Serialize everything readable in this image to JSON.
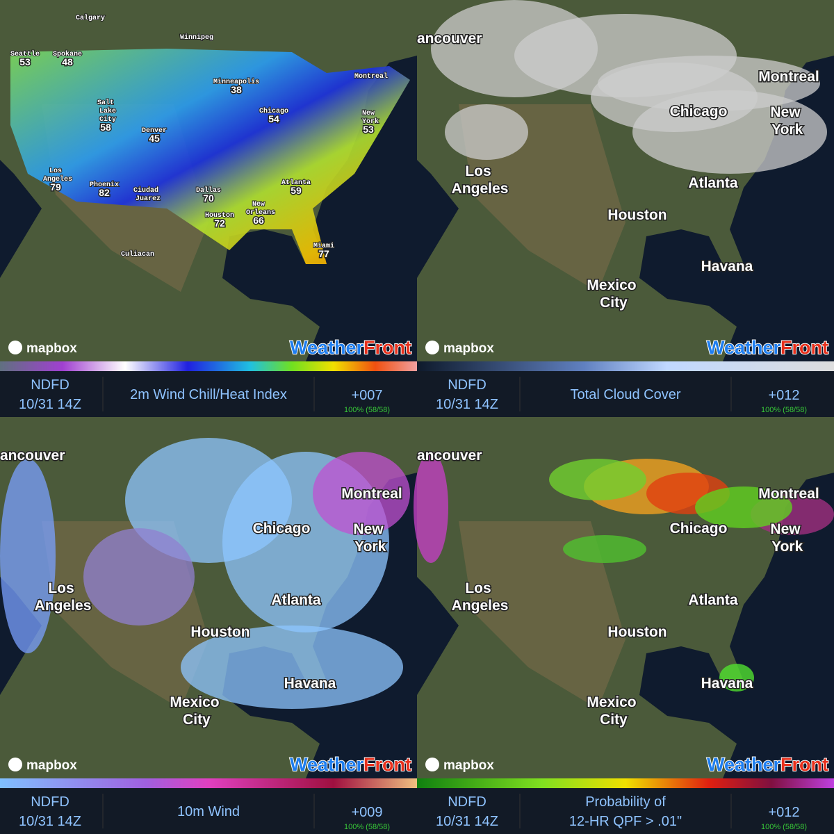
{
  "panels": [
    {
      "cities": [
        {
          "name": "Calgary"
        },
        {
          "name": "Winnipeg"
        },
        {
          "name": "Seattle",
          "value": 53
        },
        {
          "name": "Spokane",
          "value": 48
        },
        {
          "name": "Minneapolis",
          "value": 38
        },
        {
          "name": "Montreal"
        },
        {
          "name": "Salt Lake City",
          "value": 58
        },
        {
          "name": "Chicago",
          "value": 54
        },
        {
          "name": "New York",
          "value": 53
        },
        {
          "name": "Denver",
          "value": 45
        },
        {
          "name": "Los Angeles",
          "value": 79
        },
        {
          "name": "Phoenix",
          "value": 82
        },
        {
          "name": "Ciudad Juarez"
        },
        {
          "name": "Dallas",
          "value": 70
        },
        {
          "name": "Atlanta",
          "value": 59
        },
        {
          "name": "New Orleans",
          "value": 66
        },
        {
          "name": "Houston",
          "value": 72
        },
        {
          "name": "Miami",
          "value": 77
        },
        {
          "name": "Culiacan"
        }
      ],
      "logo": "mapbox",
      "brand": [
        "Weather",
        "Front"
      ],
      "footer": {
        "source": "NDFD",
        "time": "10/31 14Z",
        "product": [
          "2m Wind Chill/Heat Index"
        ],
        "offset": "+007",
        "progress": "100% (58/58)"
      }
    },
    {
      "cities": [
        {
          "name": "ancouver"
        },
        {
          "name": "Montreal"
        },
        {
          "name": "Chicago"
        },
        {
          "name": "New York"
        },
        {
          "name": "Los Angeles"
        },
        {
          "name": "Atlanta"
        },
        {
          "name": "Houston"
        },
        {
          "name": "Havana"
        },
        {
          "name": "Mexico City"
        }
      ],
      "logo": "mapbox",
      "brand": [
        "Weather",
        "Front"
      ],
      "footer": {
        "source": "NDFD",
        "time": "10/31 14Z",
        "product": [
          "Total Cloud Cover"
        ],
        "offset": "+012",
        "progress": "100% (58/58)"
      }
    },
    {
      "cities": [
        {
          "name": "ancouver"
        },
        {
          "name": "Montreal"
        },
        {
          "name": "Chicago"
        },
        {
          "name": "New York"
        },
        {
          "name": "Los Angeles"
        },
        {
          "name": "Atlanta"
        },
        {
          "name": "Houston"
        },
        {
          "name": "Havana"
        },
        {
          "name": "Mexico City"
        }
      ],
      "logo": "mapbox",
      "brand": [
        "Weather",
        "Front"
      ],
      "footer": {
        "source": "NDFD",
        "time": "10/31 14Z",
        "product": [
          "10m Wind"
        ],
        "offset": "+009",
        "progress": "100% (58/58)"
      }
    },
    {
      "cities": [
        {
          "name": "ancouver"
        },
        {
          "name": "Montreal"
        },
        {
          "name": "Chicago"
        },
        {
          "name": "New York"
        },
        {
          "name": "Los Angeles"
        },
        {
          "name": "Atlanta"
        },
        {
          "name": "Houston"
        },
        {
          "name": "Havana"
        },
        {
          "name": "Mexico City"
        }
      ],
      "logo": "mapbox",
      "brand": [
        "Weather",
        "Front"
      ],
      "footer": {
        "source": "NDFD",
        "time": "10/31 14Z",
        "product": [
          "Probability of",
          "12-HR QPF > .01\""
        ],
        "offset": "+012",
        "progress": "100% (58/58)"
      }
    }
  ]
}
